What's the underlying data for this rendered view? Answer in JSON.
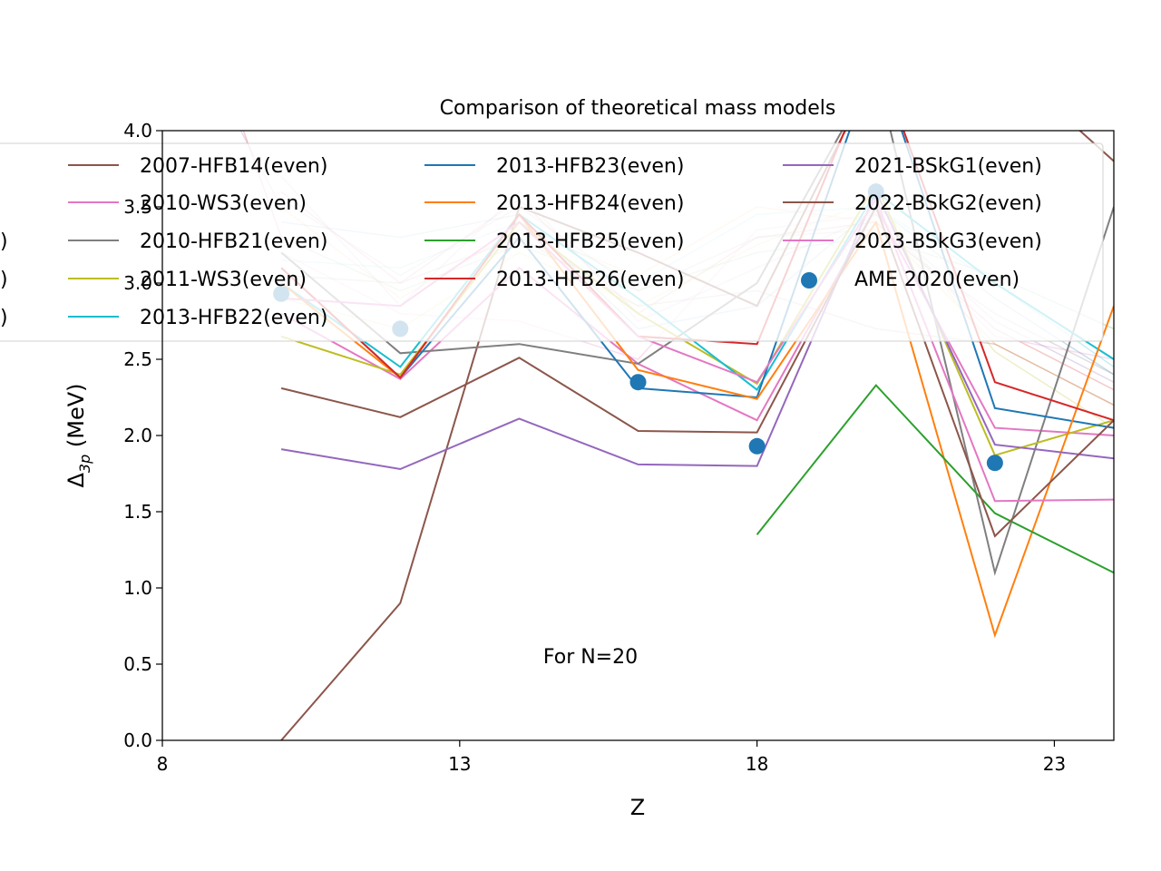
{
  "chart_data": {
    "type": "line",
    "title": "Comparison of theoretical mass models",
    "xlabel": "Z",
    "ylabel_main": "Δ",
    "ylabel_sub": "3p",
    "ylabel_unit": " (MeV)",
    "annotation": "For N=20",
    "xlim": [
      8,
      24
    ],
    "ylim": [
      0,
      4
    ],
    "x_ticks": [
      8,
      13,
      18,
      23
    ],
    "y_ticks": [
      "0.0",
      "0.5",
      "1.0",
      "1.5",
      "2.0",
      "2.5",
      "3.0",
      "3.5",
      "4.0"
    ],
    "legend_placement": "top (overlapping plot)",
    "legend_partial_left": [
      ")",
      ")",
      ")"
    ],
    "legend": [
      {
        "label": "2007-HFB14(even)",
        "color": "#8c564b",
        "marker": "line"
      },
      {
        "label": "2010-WS3(even)",
        "color": "#e377c2",
        "marker": "line"
      },
      {
        "label": "2010-HFB21(even)",
        "color": "#7f7f7f",
        "marker": "line"
      },
      {
        "label": "2011-WS3(even)",
        "color": "#bcbd22",
        "marker": "line"
      },
      {
        "label": "2013-HFB22(even)",
        "color": "#17becf",
        "marker": "line"
      },
      {
        "label": "2013-HFB23(even)",
        "color": "#1f77b4",
        "marker": "line"
      },
      {
        "label": "2013-HFB24(even)",
        "color": "#ff7f0e",
        "marker": "line"
      },
      {
        "label": "2013-HFB25(even)",
        "color": "#2ca02c",
        "marker": "line"
      },
      {
        "label": "2013-HFB26(even)",
        "color": "#d62728",
        "marker": "line"
      },
      {
        "label": "2021-BSkG1(even)",
        "color": "#9467bd",
        "marker": "line"
      },
      {
        "label": "2022-BSkG2(even)",
        "color": "#8c564b",
        "marker": "line"
      },
      {
        "label": "2023-BSkG3(even)",
        "color": "#e377c2",
        "marker": "line"
      },
      {
        "label": "AME 2020(even)",
        "color": "#1f77b4",
        "marker": "dot"
      }
    ],
    "series": [
      {
        "name": "2007-HFB14(even)",
        "color": "#8c564b",
        "x": [
          10,
          12,
          14,
          16,
          18,
          20,
          22,
          24
        ],
        "y": [
          0.0,
          0.9,
          3.5,
          3.2,
          2.85,
          4.4,
          4.5,
          3.8
        ]
      },
      {
        "name": "2010-WS3(even)",
        "color": "#e377c2",
        "x": [
          10,
          12,
          14,
          16,
          18,
          20,
          22,
          24
        ],
        "y": [
          2.8,
          2.37,
          3.1,
          2.47,
          2.1,
          3.5,
          2.05,
          2.0
        ]
      },
      {
        "name": "2010-HFB21(even)",
        "color": "#7f7f7f",
        "x": [
          10,
          12,
          14,
          16,
          18,
          20,
          22,
          24
        ],
        "y": [
          3.2,
          2.54,
          2.6,
          2.47,
          3.0,
          4.4,
          1.1,
          3.5
        ]
      },
      {
        "name": "2011-WS3(even)",
        "color": "#bcbd22",
        "x": [
          10,
          12,
          14,
          16,
          18,
          20,
          22,
          24
        ],
        "y": [
          2.65,
          2.4,
          3.4,
          2.8,
          2.34,
          3.65,
          1.87,
          2.1
        ]
      },
      {
        "name": "2013-HFB22(even)",
        "color": "#17becf",
        "x": [
          10,
          12,
          14,
          16,
          18,
          20,
          22,
          24
        ],
        "y": [
          3.0,
          2.45,
          3.45,
          2.9,
          2.3,
          3.6,
          3.0,
          2.5
        ]
      },
      {
        "name": "2013-HFB23(even)",
        "color": "#1f77b4",
        "x": [
          10,
          12,
          14,
          16,
          18,
          20,
          22,
          24
        ],
        "y": [
          3.1,
          2.38,
          3.3,
          2.31,
          2.25,
          4.5,
          2.18,
          2.05
        ]
      },
      {
        "name": "2013-HFB24(even)",
        "color": "#ff7f0e",
        "x": [
          10,
          12,
          14,
          16,
          18,
          20,
          22,
          24
        ],
        "y": [
          3.0,
          2.38,
          3.45,
          2.43,
          2.24,
          3.4,
          0.69,
          2.85
        ]
      },
      {
        "name": "2013-HFB25(even)",
        "color": "#2ca02c",
        "x": [
          18,
          20,
          22,
          24
        ],
        "y": [
          1.35,
          2.33,
          1.49,
          1.1
        ]
      },
      {
        "name": "2013-HFB26(even)",
        "color": "#d62728",
        "x": [
          10,
          12,
          14,
          16,
          18,
          20,
          22,
          24
        ],
        "y": [
          3.1,
          2.38,
          3.45,
          2.65,
          2.6,
          4.5,
          2.35,
          2.1
        ]
      },
      {
        "name": "2021-BSkG1(even)",
        "color": "#9467bd",
        "x": [
          10,
          12,
          14,
          16,
          18,
          20,
          22,
          24
        ],
        "y": [
          1.91,
          1.78,
          2.11,
          1.81,
          1.8,
          3.6,
          1.94,
          1.85
        ]
      },
      {
        "name": "2022-BSkG2(even)",
        "color": "#8c564b",
        "x": [
          10,
          12,
          14,
          16,
          18,
          20,
          22,
          24
        ],
        "y": [
          2.31,
          2.12,
          2.51,
          2.03,
          2.02,
          3.5,
          1.34,
          2.1
        ]
      },
      {
        "name": "2023-BSkG3(even)",
        "color": "#e377c2",
        "x": [
          10,
          12,
          14,
          16,
          18,
          20,
          22,
          24
        ],
        "y": [
          2.9,
          2.85,
          3.4,
          2.65,
          2.35,
          3.55,
          1.57,
          1.58
        ]
      },
      {
        "name": "AME 2020(even)",
        "color": "#1f77b4",
        "style": "points",
        "x": [
          10,
          12,
          16,
          18,
          20,
          22
        ],
        "y": [
          2.93,
          2.7,
          2.35,
          1.93,
          3.6,
          1.82
        ]
      }
    ],
    "faint_series": [
      {
        "color": "#d62728",
        "x": [
          10,
          12,
          14,
          16,
          18,
          20,
          22,
          24
        ],
        "y": [
          3.6,
          3.0,
          3.55,
          2.8,
          3.3,
          3.4,
          2.7,
          2.3
        ]
      },
      {
        "color": "#1f77b4",
        "x": [
          10,
          12,
          14,
          16,
          18,
          20,
          22,
          24
        ],
        "y": [
          3.4,
          3.3,
          3.45,
          2.7,
          2.85,
          3.5,
          2.9,
          2.4
        ]
      },
      {
        "color": "#ff7f0e",
        "x": [
          10,
          12,
          14,
          16,
          18,
          20,
          22,
          24
        ],
        "y": [
          3.5,
          2.9,
          3.35,
          3.05,
          3.5,
          3.4,
          2.6,
          2.2
        ]
      },
      {
        "color": "#2ca02c",
        "x": [
          10,
          12,
          14,
          16,
          18,
          20,
          22,
          24
        ],
        "y": [
          3.3,
          2.95,
          3.25,
          2.95,
          3.2,
          3.3,
          3.05,
          2.7
        ]
      },
      {
        "color": "#9467bd",
        "x": [
          10,
          12,
          14,
          16,
          18,
          20,
          22,
          24
        ],
        "y": [
          3.7,
          2.85,
          3.6,
          2.75,
          3.1,
          3.45,
          2.75,
          2.35
        ]
      },
      {
        "color": "#e377c2",
        "x": [
          10,
          12,
          14,
          16,
          18,
          20,
          22,
          24
        ],
        "y": [
          3.2,
          2.8,
          2.75,
          2.5,
          3.35,
          3.45,
          2.65,
          2.5
        ]
      },
      {
        "color": "#8c564b",
        "x": [
          10,
          12,
          14,
          16,
          18,
          20,
          22,
          24
        ],
        "y": [
          3.05,
          3.0,
          3.3,
          2.85,
          2.95,
          2.7,
          2.6,
          2.2
        ]
      },
      {
        "color": "#17becf",
        "x": [
          10,
          12,
          14,
          16,
          18,
          20,
          22,
          24
        ],
        "y": [
          3.15,
          3.1,
          3.4,
          3.0,
          3.45,
          3.5,
          3.0,
          2.45
        ]
      },
      {
        "color": "#bcbd22",
        "x": [
          10,
          12,
          14,
          16,
          18,
          20,
          22,
          24
        ],
        "y": [
          2.9,
          2.7,
          3.2,
          2.85,
          3.25,
          3.55,
          2.55,
          2.05
        ]
      },
      {
        "color": "#7f7f7f",
        "x": [
          10,
          12,
          14,
          16,
          18,
          20,
          22,
          24
        ],
        "y": [
          3.55,
          3.05,
          3.5,
          2.95,
          3.3,
          3.35,
          2.8,
          2.4
        ]
      },
      {
        "color": "#d62728",
        "x": [
          9,
          10
        ],
        "y": [
          4.4,
          3.3
        ]
      },
      {
        "color": "#9467bd",
        "x": [
          8.5,
          10
        ],
        "y": [
          4.6,
          3.5
        ]
      }
    ]
  }
}
